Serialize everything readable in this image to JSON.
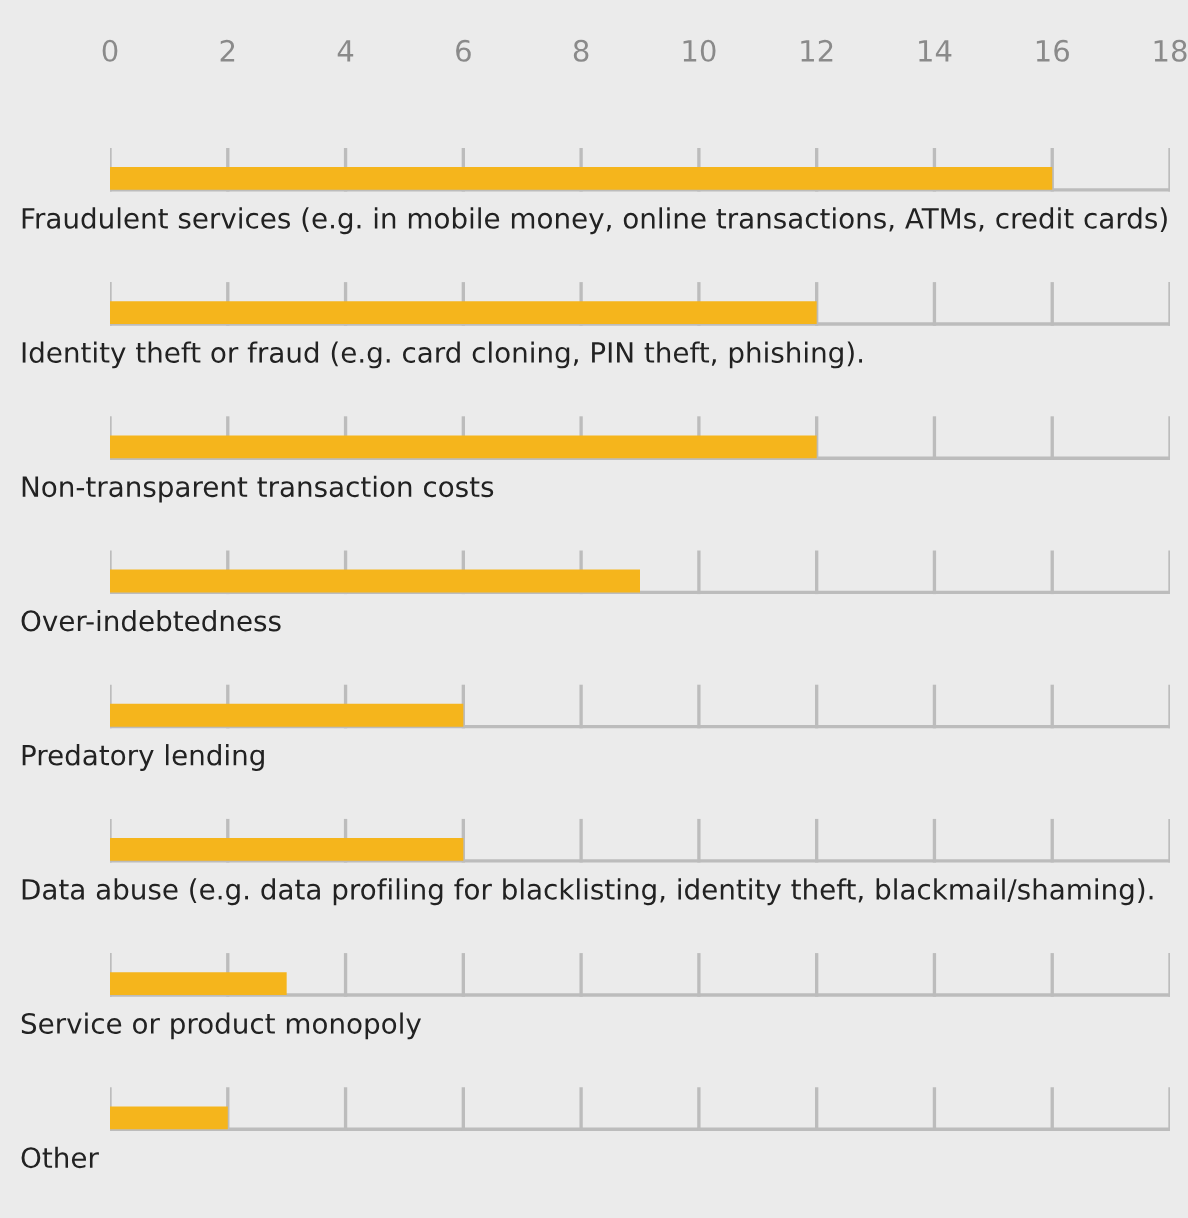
{
  "chart_data": {
    "type": "bar",
    "orientation": "horizontal",
    "categories": [
      "Fraudulent services (e.g. in mobile money, online transactions, ATMs, credit cards)",
      "Identity theft or fraud (e.g. card cloning, PIN theft, phishing).",
      "Non-transparent transaction costs",
      "Over-indebtedness",
      "Predatory lending",
      "Data abuse (e.g. data profiling for blacklisting, identity theft, blackmail/shaming).",
      "Service or product monopoly",
      "Other"
    ],
    "values": [
      16,
      12,
      12,
      9,
      6,
      6,
      3,
      2
    ],
    "color": "#f5b51c",
    "xlim": [
      0,
      18
    ],
    "xticks": [
      0,
      2,
      4,
      6,
      8,
      10,
      12,
      14,
      16,
      18
    ]
  }
}
